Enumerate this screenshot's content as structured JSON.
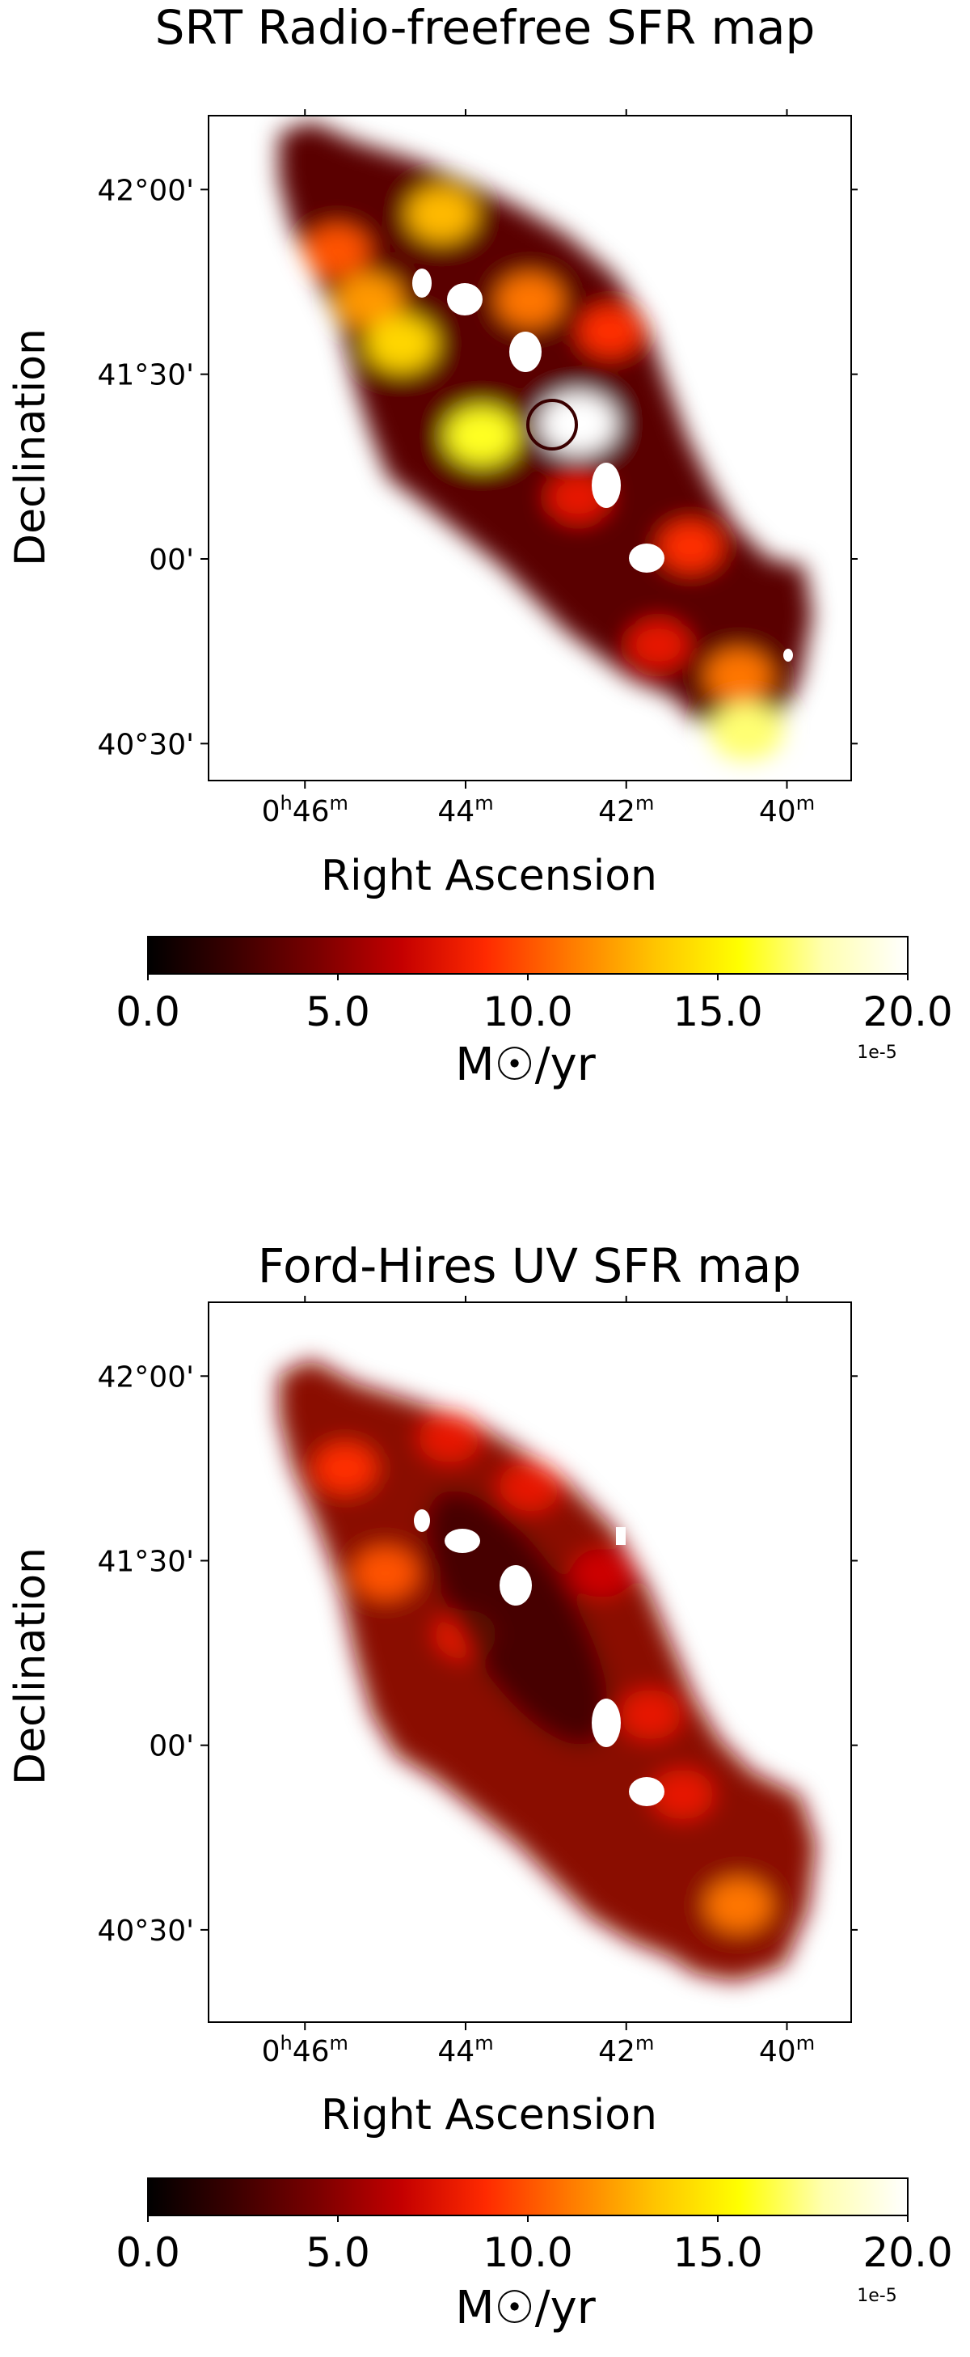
{
  "colors": {
    "colormap": [
      "#000000",
      "#3a0000",
      "#7a0000",
      "#c40000",
      "#ff2a00",
      "#ff7a00",
      "#ffc400",
      "#ffff00",
      "#ffffb0",
      "#ffffff"
    ],
    "axes": "#000000",
    "background": "#ffffff"
  },
  "chart_data": [
    {
      "type": "heatmap",
      "title": "SRT Radio-freefree SFR map",
      "xlabel": "Right Ascension",
      "ylabel": "Declination",
      "x_ticks": [
        {
          "value": 46,
          "label": "0h46m",
          "main": "0",
          "sup1": "h",
          "mid": "46",
          "sup2": "m"
        },
        {
          "value": 44,
          "label": "44m",
          "main": "44",
          "sup2": "m"
        },
        {
          "value": 42,
          "label": "42m",
          "main": "42",
          "sup2": "m"
        },
        {
          "value": 40,
          "label": "40m",
          "main": "40",
          "sup2": "m"
        }
      ],
      "y_ticks": [
        {
          "value_arcmin": 60,
          "label": "42°00'"
        },
        {
          "value_arcmin": 30,
          "label": "41°30'"
        },
        {
          "value_arcmin": 0,
          "label": "00'"
        },
        {
          "value_arcmin": -30,
          "label": "40°30'"
        }
      ],
      "colorbar": {
        "tick_labels": [
          "0.0",
          "5.0",
          "10.0",
          "15.0",
          "20.0"
        ],
        "range": [
          0.0,
          20.0
        ],
        "unit_label": "M☉/yr",
        "offset_label": "1e-5"
      },
      "regions": [
        {
          "ra": 45.6,
          "dec": 50,
          "value": 10
        },
        {
          "ra": 44.3,
          "dec": 56,
          "value": 13
        },
        {
          "ra": 45.2,
          "dec": 42,
          "value": 12
        },
        {
          "ra": 44.8,
          "dec": 35,
          "value": 14
        },
        {
          "ra": 43.8,
          "dec": 20,
          "value": 16
        },
        {
          "ra": 42.6,
          "dec": 22,
          "value": 20
        },
        {
          "ra": 43.2,
          "dec": 42,
          "value": 11
        },
        {
          "ra": 42.2,
          "dec": 37,
          "value": 9
        },
        {
          "ra": 42.6,
          "dec": 10,
          "value": 8
        },
        {
          "ra": 41.2,
          "dec": 2,
          "value": 9
        },
        {
          "ra": 41.6,
          "dec": -14,
          "value": 8
        },
        {
          "ra": 40.6,
          "dec": -19,
          "value": 11
        },
        {
          "ra": 40.5,
          "dec": -28,
          "value": 17
        }
      ]
    },
    {
      "type": "heatmap",
      "title": "Ford-Hires UV SFR map",
      "xlabel": "Right Ascension",
      "ylabel": "Declination",
      "x_ticks": [
        {
          "value": 46,
          "label": "0h46m",
          "main": "0",
          "sup1": "h",
          "mid": "46",
          "sup2": "m"
        },
        {
          "value": 44,
          "label": "44m",
          "main": "44",
          "sup2": "m"
        },
        {
          "value": 42,
          "label": "42m",
          "main": "42",
          "sup2": "m"
        },
        {
          "value": 40,
          "label": "40m",
          "main": "40",
          "sup2": "m"
        }
      ],
      "y_ticks": [
        {
          "value_arcmin": 60,
          "label": "42°00'"
        },
        {
          "value_arcmin": 30,
          "label": "41°30'"
        },
        {
          "value_arcmin": 0,
          "label": "00'"
        },
        {
          "value_arcmin": -30,
          "label": "40°30'"
        }
      ],
      "colorbar": {
        "tick_labels": [
          "0.0",
          "5.0",
          "10.0",
          "15.0",
          "20.0"
        ],
        "range": [
          0.0,
          20.0
        ],
        "unit_label": "M☉/yr",
        "offset_label": "1e-5"
      },
      "regions": [
        {
          "ra": 45.5,
          "dec": 45,
          "value": 9
        },
        {
          "ra": 45.0,
          "dec": 28,
          "value": 10
        },
        {
          "ra": 44.2,
          "dec": 50,
          "value": 8
        },
        {
          "ra": 43.2,
          "dec": 42,
          "value": 8
        },
        {
          "ra": 44.0,
          "dec": 18,
          "value": 8
        },
        {
          "ra": 42.3,
          "dec": 28,
          "value": 7
        },
        {
          "ra": 41.7,
          "dec": 5,
          "value": 8
        },
        {
          "ra": 41.3,
          "dec": -8,
          "value": 8
        },
        {
          "ra": 40.6,
          "dec": -26,
          "value": 11
        }
      ]
    }
  ]
}
